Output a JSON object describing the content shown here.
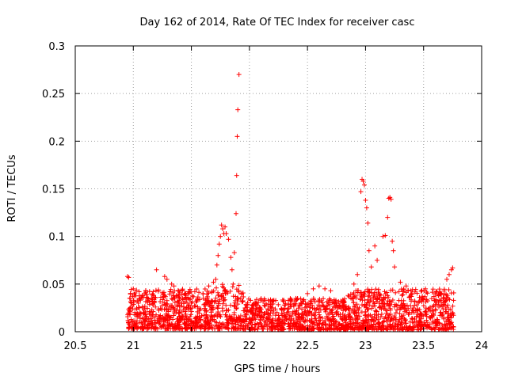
{
  "chart_data": {
    "type": "scatter",
    "title": "Day 162 of 2014, Rate Of TEC Index for receiver casc",
    "xlabel": "GPS time / hours",
    "ylabel": "ROTI / TECUs",
    "xlim": [
      20.5,
      24
    ],
    "ylim": [
      0,
      0.3
    ],
    "xticks": [
      20.5,
      21,
      21.5,
      22,
      22.5,
      23,
      23.5,
      24
    ],
    "xtick_labels": [
      "20.5",
      "21",
      "21.5",
      "22",
      "22.5",
      "23",
      "23.5",
      "24"
    ],
    "yticks": [
      0,
      0.05,
      0.1,
      0.15,
      0.2,
      0.25,
      0.3
    ],
    "ytick_labels": [
      "0",
      "0.05",
      "0.1",
      "0.15",
      "0.2",
      "0.25",
      "0.3"
    ],
    "grid": true,
    "marker": "plus",
    "color": "#ff0000",
    "series": [
      {
        "name": "ROTI",
        "points": [
          [
            20.95,
            0.058
          ],
          [
            20.96,
            0.057
          ],
          [
            21.0,
            0.045
          ],
          [
            21.05,
            0.042
          ],
          [
            21.1,
            0.04
          ],
          [
            21.2,
            0.065
          ],
          [
            21.27,
            0.058
          ],
          [
            21.29,
            0.055
          ],
          [
            21.33,
            0.05
          ],
          [
            21.35,
            0.048
          ],
          [
            21.4,
            0.035
          ],
          [
            21.5,
            0.03
          ],
          [
            21.6,
            0.04
          ],
          [
            21.65,
            0.048
          ],
          [
            21.69,
            0.052
          ],
          [
            21.71,
            0.055
          ],
          [
            21.72,
            0.07
          ],
          [
            21.73,
            0.08
          ],
          [
            21.74,
            0.092
          ],
          [
            21.75,
            0.1
          ],
          [
            21.76,
            0.112
          ],
          [
            21.77,
            0.108
          ],
          [
            21.78,
            0.103
          ],
          [
            21.79,
            0.11
          ],
          [
            21.8,
            0.103
          ],
          [
            21.82,
            0.097
          ],
          [
            21.84,
            0.078
          ],
          [
            21.85,
            0.065
          ],
          [
            21.86,
            0.05
          ],
          [
            21.87,
            0.083
          ],
          [
            21.885,
            0.124
          ],
          [
            21.89,
            0.164
          ],
          [
            21.895,
            0.205
          ],
          [
            21.9,
            0.233
          ],
          [
            21.91,
            0.27
          ],
          [
            22.05,
            0.03
          ],
          [
            22.1,
            0.033
          ],
          [
            22.2,
            0.025
          ],
          [
            22.3,
            0.028
          ],
          [
            22.4,
            0.035
          ],
          [
            22.5,
            0.04
          ],
          [
            22.55,
            0.045
          ],
          [
            22.6,
            0.048
          ],
          [
            22.65,
            0.045
          ],
          [
            22.7,
            0.043
          ],
          [
            22.8,
            0.03
          ],
          [
            22.85,
            0.038
          ],
          [
            22.9,
            0.05
          ],
          [
            22.93,
            0.06
          ],
          [
            22.96,
            0.147
          ],
          [
            22.97,
            0.16
          ],
          [
            22.98,
            0.158
          ],
          [
            22.99,
            0.154
          ],
          [
            23.0,
            0.138
          ],
          [
            23.01,
            0.13
          ],
          [
            23.02,
            0.114
          ],
          [
            23.03,
            0.085
          ],
          [
            23.05,
            0.068
          ],
          [
            23.08,
            0.09
          ],
          [
            23.1,
            0.075
          ],
          [
            23.15,
            0.1
          ],
          [
            23.17,
            0.101
          ],
          [
            23.19,
            0.12
          ],
          [
            23.2,
            0.14
          ],
          [
            23.21,
            0.141
          ],
          [
            23.22,
            0.139
          ],
          [
            23.23,
            0.095
          ],
          [
            23.24,
            0.085
          ],
          [
            23.25,
            0.068
          ],
          [
            23.3,
            0.052
          ],
          [
            23.35,
            0.048
          ],
          [
            23.4,
            0.04
          ],
          [
            23.5,
            0.035
          ],
          [
            23.6,
            0.04
          ],
          [
            23.65,
            0.04
          ],
          [
            23.7,
            0.055
          ],
          [
            23.72,
            0.06
          ],
          [
            23.74,
            0.065
          ],
          [
            23.75,
            0.067
          ]
        ],
        "bands": [
          {
            "x_range": [
              20.95,
              21.7
            ],
            "y_range": [
              0.003,
              0.045
            ],
            "count": 620
          },
          {
            "x_range": [
              21.7,
              21.95
            ],
            "y_range": [
              0.003,
              0.05
            ],
            "count": 170
          },
          {
            "x_range": [
              21.95,
              22.85
            ],
            "y_range": [
              0.002,
              0.035
            ],
            "count": 650
          },
          {
            "x_range": [
              22.85,
              23.76
            ],
            "y_range": [
              0.002,
              0.045
            ],
            "count": 720
          }
        ]
      }
    ]
  }
}
